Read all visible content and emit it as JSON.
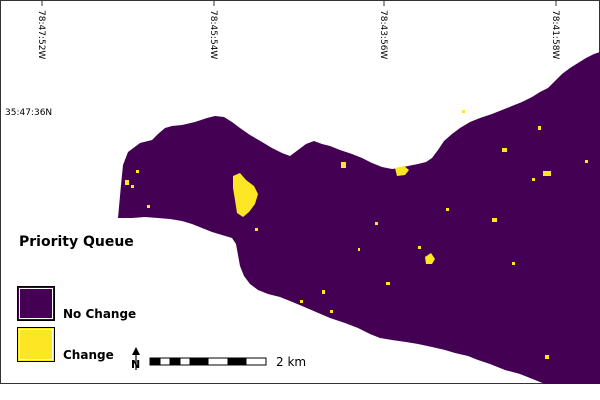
{
  "map": {
    "longitude_labels": [
      "78:47:52W",
      "78:45:54W",
      "78:43:56W",
      "78:41:58W"
    ],
    "latitude_label": "35:47:36N",
    "region_fill": "#440154",
    "change_fill": "#fde725"
  },
  "legend": {
    "title": "Priority Queue",
    "items": [
      {
        "label": "No Change",
        "color": "#440154"
      },
      {
        "label": "Change",
        "color": "#fde725"
      }
    ]
  },
  "north_arrow": {
    "label": "N",
    "icon": "north-arrow-icon"
  },
  "scale_bar": {
    "label": "2 km"
  }
}
